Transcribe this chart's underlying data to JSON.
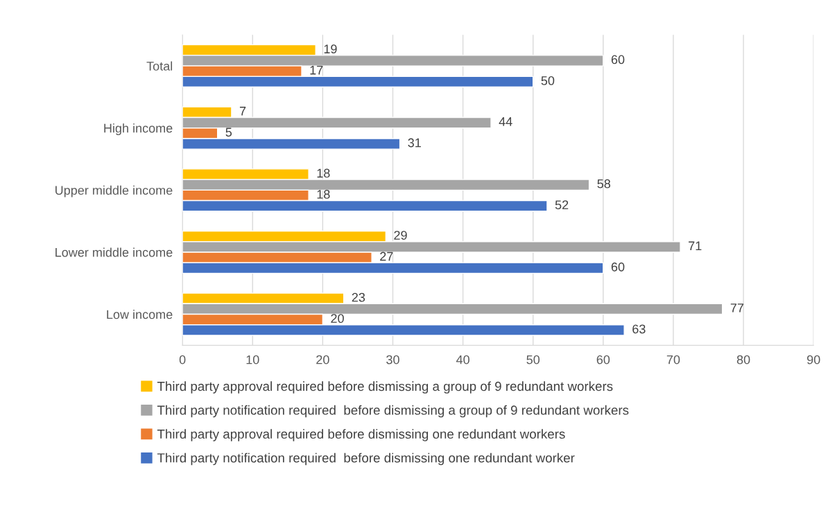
{
  "chart_data": {
    "type": "bar",
    "orientation": "horizontal",
    "categories": [
      "Total",
      "High income",
      "Upper middle income",
      "Lower middle income",
      "Low income"
    ],
    "series": [
      {
        "name": "Third party approval required before dismissing a group of 9 redundant workers",
        "color": "#ffc000",
        "values": [
          19,
          7,
          18,
          29,
          23
        ]
      },
      {
        "name": "Third party notification required  before dismissing a group of 9 redundant workers",
        "color": "#a5a5a5",
        "values": [
          60,
          44,
          58,
          71,
          77
        ]
      },
      {
        "name": "Third party approval required before dismissing one redundant workers",
        "color": "#ed7d31",
        "values": [
          17,
          5,
          18,
          27,
          20
        ]
      },
      {
        "name": "Third party notification required  before dismissing one redundant worker",
        "color": "#4472c4",
        "values": [
          50,
          31,
          52,
          60,
          63
        ]
      }
    ],
    "xlim": [
      0,
      90
    ],
    "xticks": [
      0,
      10,
      20,
      30,
      40,
      50,
      60,
      70,
      80,
      90
    ],
    "grid": "x",
    "legend": "bottom",
    "data_labels": true
  }
}
